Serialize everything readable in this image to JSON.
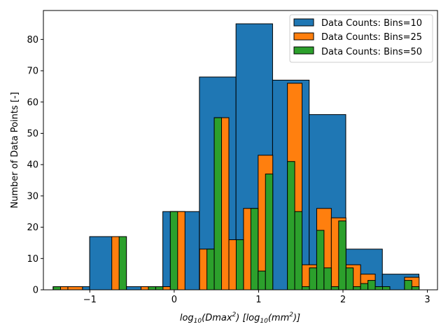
{
  "chart_data": {
    "type": "bar",
    "title": "",
    "xlabel": "log10(Dmax2) [log10(mm2)]",
    "xlabel_parts": {
      "log_a": "log",
      "sub_a": "10",
      "paren_open": "(",
      "var": "Dmax",
      "sup": "2",
      "paren_close": ") [",
      "log_b": "log",
      "sub_b": "10",
      "paren_open_b": "(",
      "unit": "mm",
      "unit_sup": "2",
      "end": ")]"
    },
    "ylabel": "Number of Data Points [-]",
    "xlim": [
      -1.55,
      3.12
    ],
    "ylim": [
      0,
      89.25
    ],
    "xticks": [
      -1,
      0,
      1,
      2,
      3
    ],
    "xtick_labels": [
      "−1",
      "0",
      "1",
      "2",
      "3"
    ],
    "yticks": [
      0,
      10,
      20,
      30,
      40,
      50,
      60,
      70,
      80
    ],
    "ytick_labels": [
      "0",
      "10",
      "20",
      "30",
      "40",
      "50",
      "60",
      "70",
      "80"
    ],
    "legend_position": "top-right",
    "grid": false,
    "series": [
      {
        "name": "Data Counts: Bins=10",
        "color": "#1f77b4",
        "bar_width": 0.4336,
        "x": [
          -1.2189,
          -0.7853,
          -0.3517,
          0.0819,
          0.5155,
          0.9491,
          1.3827,
          1.8163,
          2.2499,
          2.6835
        ],
        "values": [
          1,
          17,
          1,
          25,
          68,
          85,
          67,
          56,
          13,
          5
        ]
      },
      {
        "name": "Data Counts: Bins=25",
        "color": "#ff7f0e",
        "bar_width": 0.1734,
        "x": [
          -1.3466,
          -1.1732,
          -0.9997,
          -0.8263,
          -0.6528,
          -0.4794,
          -0.3059,
          -0.1325,
          0.041,
          0.2144,
          0.3879,
          0.5613,
          0.7348,
          0.9082,
          1.0817,
          1.2551,
          1.4286,
          1.602,
          1.7755,
          1.9489,
          2.1224,
          2.2958,
          2.4693,
          2.6427,
          2.8162
        ],
        "values": [
          1,
          1,
          0,
          0,
          17,
          0,
          1,
          1,
          25,
          0,
          13,
          55,
          16,
          26,
          43,
          0,
          66,
          8,
          26,
          23,
          8,
          5,
          0,
          0,
          4
        ]
      },
      {
        "name": "Data Counts: Bins=50",
        "color": "#2ca02c",
        "bar_width": 0.0867,
        "x": [
          -1.39,
          -1.3033,
          -1.2166,
          -1.1298,
          -1.0431,
          -0.9564,
          -0.8697,
          -0.783,
          -0.6962,
          -0.6095,
          -0.5228,
          -0.4361,
          -0.3494,
          -0.2626,
          -0.1759,
          -0.0892,
          -0.0025,
          0.0842,
          0.171,
          0.2577,
          0.3444,
          0.4311,
          0.5178,
          0.6046,
          0.6913,
          0.778,
          0.8647,
          0.9514,
          1.0382,
          1.1249,
          1.2116,
          1.2983,
          1.385,
          1.4718,
          1.5585,
          1.6452,
          1.7319,
          1.8186,
          1.9054,
          1.9921,
          2.0788,
          2.1655,
          2.2522,
          2.339,
          2.4257,
          2.5124,
          2.5991,
          2.6858,
          2.7726,
          2.8593
        ],
        "values": [
          1,
          0,
          0,
          0,
          0,
          0,
          0,
          0,
          0,
          17,
          0,
          0,
          0,
          1,
          1,
          0,
          25,
          0,
          0,
          0,
          0,
          13,
          55,
          0,
          0,
          16,
          0,
          26,
          6,
          37,
          0,
          0,
          41,
          25,
          1,
          7,
          19,
          7,
          1,
          22,
          7,
          1,
          2,
          3,
          1,
          1,
          0,
          0,
          3,
          1
        ]
      }
    ]
  }
}
